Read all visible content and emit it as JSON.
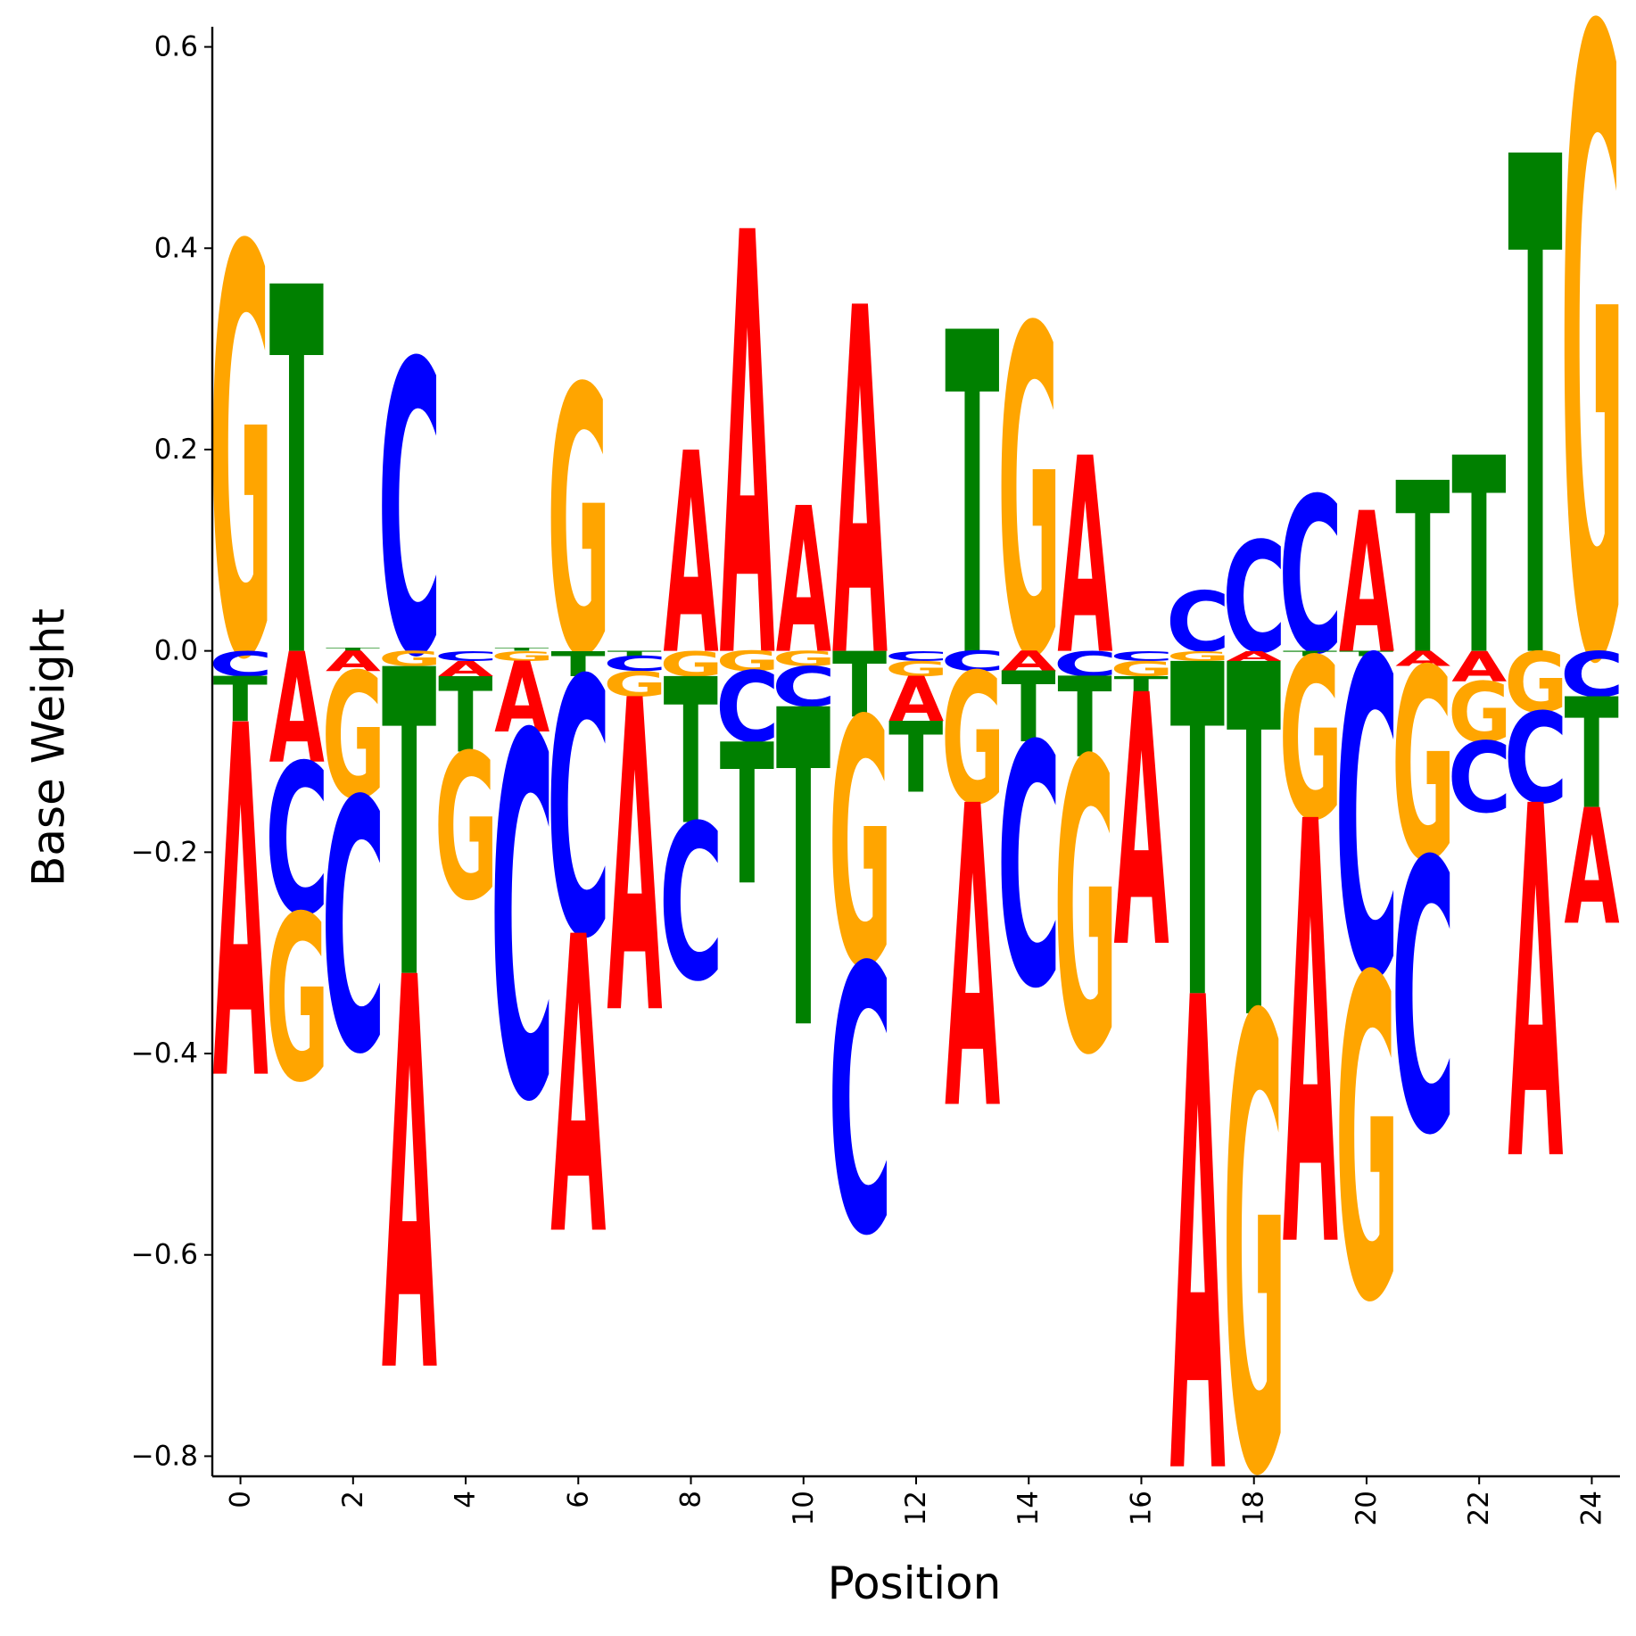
{
  "chart_data": {
    "type": "logo",
    "title": "",
    "xlabel": "Position",
    "ylabel": "Base Weight",
    "xlim": [
      -0.5,
      24.5
    ],
    "ylim": [
      -0.82,
      0.62
    ],
    "xticks": [
      0,
      2,
      4,
      6,
      8,
      10,
      12,
      14,
      16,
      18,
      20,
      22,
      24
    ],
    "xtick_labels": [
      "0",
      "2",
      "4",
      "6",
      "8",
      "10",
      "12",
      "14",
      "16",
      "18",
      "20",
      "22",
      "24"
    ],
    "yticks": [
      -0.8,
      -0.6,
      -0.4,
      -0.2,
      0.0,
      0.2,
      0.4,
      0.6
    ],
    "ytick_labels": [
      "−0.8",
      "−0.6",
      "−0.4",
      "−0.2",
      "0.0",
      "0.2",
      "0.4",
      "0.6"
    ],
    "grid": false,
    "colors": {
      "A": "#ff0000",
      "C": "#0000ff",
      "G": "#ffa500",
      "T": "#008000"
    },
    "positions": [
      {
        "A": -0.35,
        "C": -0.025,
        "G": 0.405,
        "T": -0.045
      },
      {
        "A": -0.11,
        "C": -0.15,
        "G": -0.165,
        "T": 0.365
      },
      {
        "A": -0.02,
        "C": -0.25,
        "G": -0.125,
        "T": 0.003
      },
      {
        "A": -0.39,
        "C": 0.29,
        "G": -0.015,
        "T": -0.305
      },
      {
        "A": -0.015,
        "C": -0.01,
        "G": -0.145,
        "T": -0.075
      },
      {
        "A": -0.07,
        "C": -0.36,
        "G": -0.01,
        "T": 0.003
      },
      {
        "A": -0.295,
        "C": -0.255,
        "G": 0.265,
        "T": -0.025
      },
      {
        "A": -0.31,
        "C": -0.015,
        "G": -0.025,
        "T": -0.005
      },
      {
        "A": 0.2,
        "C": -0.155,
        "G": -0.025,
        "T": -0.145
      },
      {
        "A": 0.42,
        "C": -0.07,
        "G": -0.02,
        "T": -0.14
      },
      {
        "A": 0.145,
        "C": -0.04,
        "G": -0.015,
        "T": -0.315
      },
      {
        "A": 0.345,
        "C": -0.265,
        "G": -0.245,
        "T": -0.065
      },
      {
        "A": -0.045,
        "C": -0.01,
        "G": -0.015,
        "T": -0.07
      },
      {
        "A": -0.3,
        "C": -0.02,
        "G": -0.13,
        "T": 0.32
      },
      {
        "A": -0.02,
        "C": -0.24,
        "G": 0.325,
        "T": -0.07
      },
      {
        "A": 0.195,
        "C": -0.025,
        "G": -0.29,
        "T": -0.08
      },
      {
        "A": -0.25,
        "C": -0.01,
        "G": -0.015,
        "T": -0.015
      },
      {
        "A": -0.47,
        "C": 0.06,
        "G": -0.01,
        "T": -0.33
      },
      {
        "A": -0.01,
        "C": 0.11,
        "G": -0.45,
        "T": -0.35
      },
      {
        "A": -0.42,
        "C": 0.155,
        "G": -0.16,
        "T": -0.005
      },
      {
        "A": 0.14,
        "C": -0.315,
        "G": -0.32,
        "T": -0.005
      },
      {
        "A": -0.015,
        "C": -0.27,
        "G": -0.19,
        "T": 0.17
      },
      {
        "A": -0.03,
        "C": -0.07,
        "G": -0.06,
        "T": 0.195
      },
      {
        "A": -0.35,
        "C": -0.09,
        "G": -0.06,
        "T": 0.495
      },
      {
        "A": -0.115,
        "C": -0.045,
        "G": 0.62,
        "T": -0.11
      }
    ]
  }
}
